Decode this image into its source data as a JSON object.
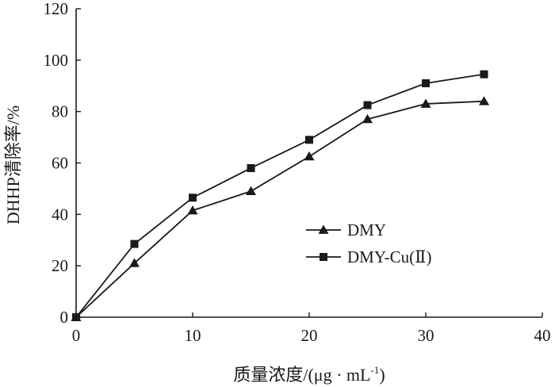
{
  "chart_data": {
    "type": "line",
    "x": [
      0,
      5,
      10,
      15,
      20,
      25,
      30,
      35
    ],
    "series": [
      {
        "name": "DMY",
        "marker": "triangle",
        "color": "#1a1a1a",
        "values": [
          0,
          21,
          41.5,
          49,
          62.5,
          77,
          83,
          84
        ]
      },
      {
        "name": "DMY-Cu(Ⅱ)",
        "marker": "square",
        "color": "#1a1a1a",
        "values": [
          0,
          28.5,
          46.5,
          58,
          69,
          82.5,
          91,
          94.5
        ]
      }
    ],
    "xlabel": "质量浓度/(μg · mL",
    "xlabel_sup": "-1",
    "xlabel_suffix": ")",
    "ylabel": "DHHP清除率/%",
    "xlim": [
      0,
      40
    ],
    "ylim": [
      0,
      120
    ],
    "xticks": [
      "0",
      "10",
      "20",
      "30",
      "40"
    ],
    "yticks": [
      "0",
      "20",
      "40",
      "60",
      "80",
      "100",
      "120"
    ],
    "grid": false,
    "legend_position": "center-right"
  }
}
